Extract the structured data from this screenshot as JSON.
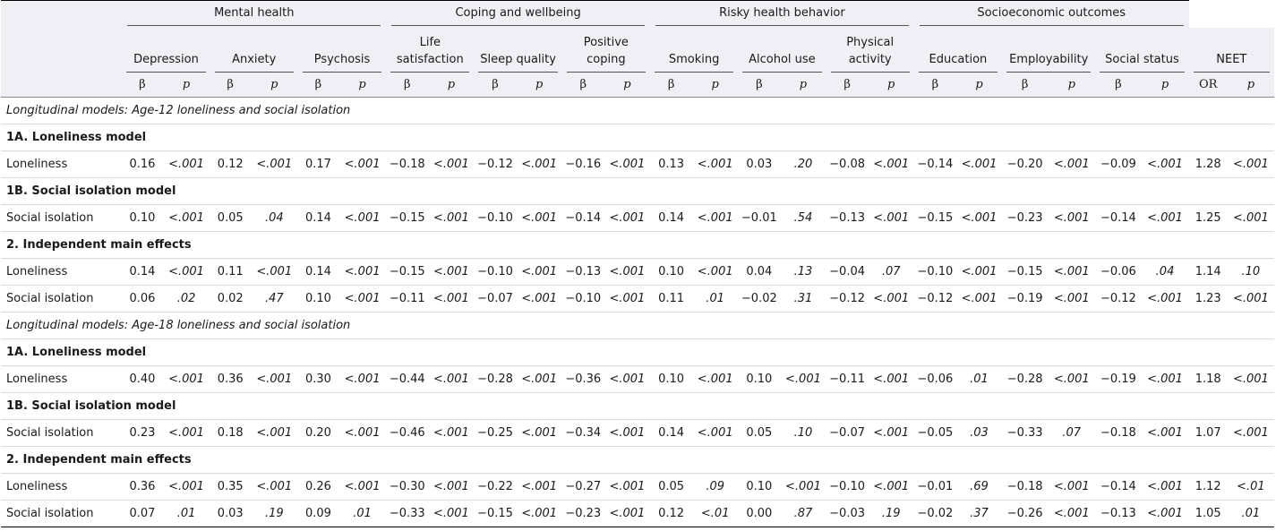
{
  "groups": [
    "Mental health",
    "Coping and wellbeing",
    "Risky health behavior",
    "Socioeconomic outcomes"
  ],
  "outcomes": [
    [
      "Depression"
    ],
    [
      "Anxiety"
    ],
    [
      "Psychosis"
    ],
    [
      "Life",
      "satisfaction"
    ],
    [
      "Sleep quality"
    ],
    [
      "Positive",
      "coping"
    ],
    [
      "Smoking"
    ],
    [
      "Alcohol use"
    ],
    [
      "Physical",
      "activity"
    ],
    [
      "Education"
    ],
    [
      "Employability"
    ],
    [
      "Social status"
    ],
    [
      "NEET"
    ]
  ],
  "stat_headers": {
    "beta": "β",
    "p": "p",
    "or": "OR"
  },
  "sections": [
    {
      "title": "Longitudinal models: Age-12 loneliness and social isolation",
      "blocks": [
        {
          "title": "1A. Loneliness model",
          "rows": [
            {
              "label": "Loneliness",
              "values": [
                "0.16",
                "<.001",
                "0.12",
                "<.001",
                "0.17",
                "<.001",
                "−0.18",
                "<.001",
                "−0.12",
                "<.001",
                "−0.16",
                "<.001",
                "0.13",
                "<.001",
                "0.03",
                ".20",
                "−0.08",
                "<.001",
                "−0.14",
                "<.001",
                "−0.20",
                "<.001",
                "−0.09",
                "<.001",
                "1.28",
                "<.001"
              ]
            }
          ]
        },
        {
          "title": "1B. Social isolation model",
          "rows": [
            {
              "label": "Social isolation",
              "values": [
                "0.10",
                "<.001",
                "0.05",
                ".04",
                "0.14",
                "<.001",
                "−0.15",
                "<.001",
                "−0.10",
                "<.001",
                "−0.14",
                "<.001",
                "0.14",
                "<.001",
                "−0.01",
                ".54",
                "−0.13",
                "<.001",
                "−0.15",
                "<.001",
                "−0.23",
                "<.001",
                "−0.14",
                "<.001",
                "1.25",
                "<.001"
              ]
            }
          ]
        },
        {
          "title": "2. Independent main effects",
          "rows": [
            {
              "label": "Loneliness",
              "values": [
                "0.14",
                "<.001",
                "0.11",
                "<.001",
                "0.14",
                "<.001",
                "−0.15",
                "<.001",
                "−0.10",
                "<.001",
                "−0.13",
                "<.001",
                "0.10",
                "<.001",
                "0.04",
                ".13",
                "−0.04",
                ".07",
                "−0.10",
                "<.001",
                "−0.15",
                "<.001",
                "−0.06",
                ".04",
                "1.14",
                ".10"
              ]
            },
            {
              "label": "Social isolation",
              "values": [
                "0.06",
                ".02",
                "0.02",
                ".47",
                "0.10",
                "<.001",
                "−0.11",
                "<.001",
                "−0.07",
                "<.001",
                "−0.10",
                "<.001",
                "0.11",
                ".01",
                "−0.02",
                ".31",
                "−0.12",
                "<.001",
                "−0.12",
                "<.001",
                "−0.19",
                "<.001",
                "−0.12",
                "<.001",
                "1.23",
                "<.001"
              ]
            }
          ]
        }
      ]
    },
    {
      "title": "Longitudinal models: Age-18 loneliness and social isolation",
      "blocks": [
        {
          "title": "1A. Loneliness model",
          "rows": [
            {
              "label": "Loneliness",
              "values": [
                "0.40",
                "<.001",
                "0.36",
                "<.001",
                "0.30",
                "<.001",
                "−0.44",
                "<.001",
                "−0.28",
                "<.001",
                "−0.36",
                "<.001",
                "0.10",
                "<.001",
                "0.10",
                "<.001",
                "−0.11",
                "<.001",
                "−0.06",
                ".01",
                "−0.28",
                "<.001",
                "−0.19",
                "<.001",
                "1.18",
                "<.001"
              ]
            }
          ]
        },
        {
          "title": "1B. Social isolation model",
          "rows": [
            {
              "label": "Social isolation",
              "values": [
                "0.23",
                "<.001",
                "0.18",
                "<.001",
                "0.20",
                "<.001",
                "−0.46",
                "<.001",
                "−0.25",
                "<.001",
                "−0.34",
                "<.001",
                "0.14",
                "<.001",
                "0.05",
                ".10",
                "−0.07",
                "<.001",
                "−0.05",
                ".03",
                "−0.33",
                ".07",
                "−0.18",
                "<.001",
                "1.07",
                "<.001"
              ]
            }
          ]
        },
        {
          "title": "2. Independent main effects",
          "rows": [
            {
              "label": "Loneliness",
              "values": [
                "0.36",
                "<.001",
                "0.35",
                "<.001",
                "0.26",
                "<.001",
                "−0.30",
                "<.001",
                "−0.22",
                "<.001",
                "−0.27",
                "<.001",
                "0.05",
                ".09",
                "0.10",
                "<.001",
                "−0.10",
                "<.001",
                "−0.01",
                ".69",
                "−0.18",
                "<.001",
                "−0.14",
                "<.001",
                "1.12",
                "<.01"
              ]
            },
            {
              "label": "Social isolation",
              "values": [
                "0.07",
                ".01",
                "0.03",
                ".19",
                "0.09",
                ".01",
                "−0.33",
                "<.001",
                "−0.15",
                "<.001",
                "−0.23",
                "<.001",
                "0.12",
                "<.01",
                "0.00",
                ".87",
                "−0.03",
                ".19",
                "−0.02",
                ".37",
                "−0.26",
                "<.001",
                "−0.13",
                "<.001",
                "1.05",
                ".01"
              ]
            }
          ]
        }
      ]
    }
  ]
}
